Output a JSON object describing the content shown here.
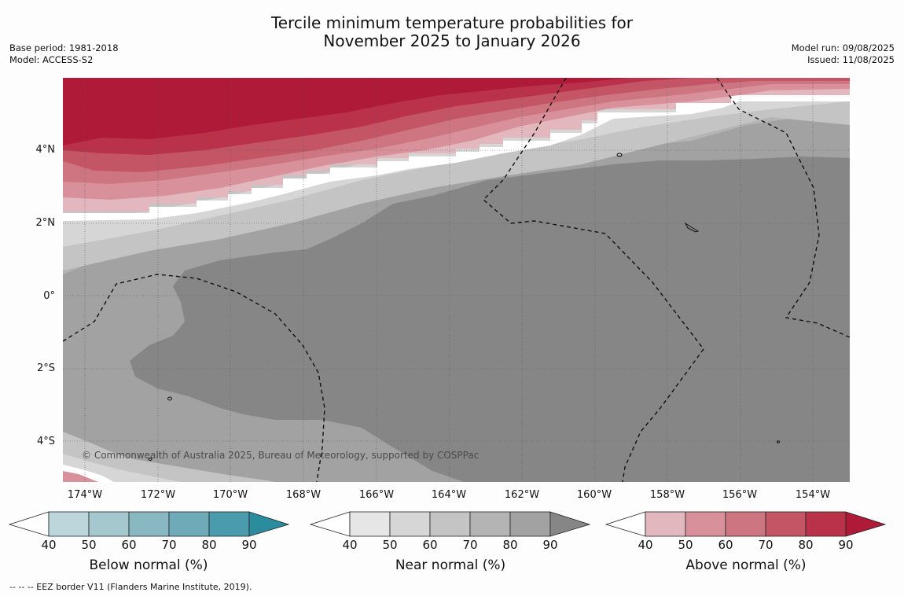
{
  "title": {
    "line1": "Tercile minimum temperature probabilities for",
    "line2": "November 2025 to January 2026"
  },
  "meta_left": {
    "base_period": "Base period: 1981-2018",
    "model": "Model: ACCESS-S2"
  },
  "meta_right": {
    "model_run": "Model run: 09/08/2025",
    "issued": "Issued: 11/08/2025"
  },
  "map": {
    "lat_labels": [
      "4°N",
      "2°N",
      "0°",
      "2°S",
      "4°S"
    ],
    "lon_labels": [
      "174°W",
      "172°W",
      "170°W",
      "168°W",
      "166°W",
      "164°W",
      "162°W",
      "160°W",
      "158°W",
      "156°W",
      "154°W"
    ],
    "copyright": "© Commonwealth of Australia 2025, Bureau of Meteorology, supported by COSPPac",
    "colors": {
      "near_40": "#e6e6e6",
      "near_50": "#d6d6d6",
      "near_60": "#c4c4c4",
      "near_70": "#b4b4b4",
      "near_80": "#a2a2a2",
      "near_90": "#868686",
      "above_40": "#e2b7bd",
      "above_50": "#d8919a",
      "above_60": "#cd7580",
      "above_70": "#c45564",
      "above_80": "#ba3249",
      "above_90": "#ae1a38"
    }
  },
  "colorbars": [
    {
      "label": "Below normal (%)",
      "ticks": [
        "40",
        "50",
        "60",
        "70",
        "80",
        "90"
      ],
      "colors": [
        "#bdd6dc",
        "#a4c8cd",
        "#89b8c2",
        "#6eaab7",
        "#4a9bab",
        "#2b8c9e"
      ]
    },
    {
      "label": "Near normal (%)",
      "ticks": [
        "40",
        "50",
        "60",
        "70",
        "80",
        "90"
      ],
      "colors": [
        "#e6e6e6",
        "#d6d6d6",
        "#c4c4c4",
        "#b4b4b4",
        "#a2a2a2",
        "#868686"
      ]
    },
    {
      "label": "Above normal (%)",
      "ticks": [
        "40",
        "50",
        "60",
        "70",
        "80",
        "90"
      ],
      "colors": [
        "#e2b7bd",
        "#d8919a",
        "#cd7580",
        "#c45564",
        "#ba3249",
        "#ae1a38"
      ]
    }
  ],
  "footnote": "--  --  -- EEZ border V11 (Flanders Marine Institute, 2019)."
}
